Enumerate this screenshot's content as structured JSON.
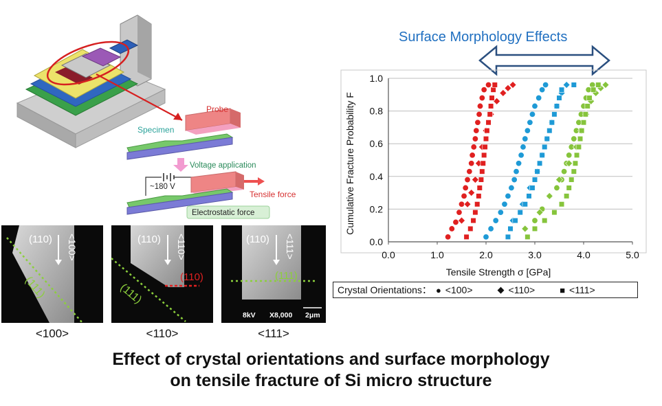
{
  "apparatus": {
    "probe_label": "Probe",
    "specimen_label": "Specimen",
    "voltage_label": "Voltage application",
    "voltage_value": "~180 V",
    "tensile_label": "Tensile force",
    "electrostatic_label": "Electrostatic force"
  },
  "sem_images": [
    {
      "caption": "<100>",
      "plane_top": "(110)",
      "direction": "<100>",
      "plane_fracture": "(111)"
    },
    {
      "caption": "<110>",
      "plane_top": "(110)",
      "direction": "<110>",
      "plane_fracture": "(111)",
      "plane_red": "(110)"
    },
    {
      "caption": "<111>",
      "plane_top": "(110)",
      "direction": "<111>",
      "plane_fracture": "(111)",
      "info": [
        "8kV",
        "X8,000",
        "2μm"
      ]
    }
  ],
  "surface_morphology_label": "Surface Morphology Effects",
  "legend": {
    "title": "Crystal Orientations：",
    "items": [
      {
        "symbol": "●",
        "label": "<100>"
      },
      {
        "symbol": "◆",
        "label": "<110>"
      },
      {
        "symbol": "■",
        "label": "<111>"
      }
    ]
  },
  "title": {
    "line1": "Effect of crystal orientations and surface morphology",
    "line2": "on tensile fracture of Si micro structure"
  },
  "colors": {
    "red": "#e02020",
    "blue": "#1e9ad6",
    "green": "#86c43c",
    "title_blue": "#1f6fc0"
  },
  "chart_data": {
    "type": "scatter",
    "xlabel": "Tensile Strength σ [GPa]",
    "ylabel": "Cumulative Fracture Probability F",
    "xlim": [
      0,
      5
    ],
    "ylim": [
      0,
      1
    ],
    "x_ticks": [
      "0.0",
      "1.0",
      "2.0",
      "3.0",
      "4.0",
      "5.0"
    ],
    "y_ticks": [
      "0.0",
      "0.2",
      "0.4",
      "0.6",
      "0.8",
      "1.0"
    ],
    "grid": "horizontal",
    "series": [
      {
        "color": "red",
        "marker": "circle",
        "points": [
          [
            1.22,
            0.03
          ],
          [
            1.3,
            0.08
          ],
          [
            1.38,
            0.12
          ],
          [
            1.45,
            0.18
          ],
          [
            1.5,
            0.23
          ],
          [
            1.55,
            0.28
          ],
          [
            1.58,
            0.33
          ],
          [
            1.62,
            0.38
          ],
          [
            1.66,
            0.43
          ],
          [
            1.7,
            0.48
          ],
          [
            1.72,
            0.53
          ],
          [
            1.75,
            0.58
          ],
          [
            1.78,
            0.63
          ],
          [
            1.8,
            0.68
          ],
          [
            1.83,
            0.73
          ],
          [
            1.86,
            0.78
          ],
          [
            1.88,
            0.83
          ],
          [
            1.92,
            0.88
          ],
          [
            1.96,
            0.93
          ],
          [
            2.05,
            0.96
          ]
        ]
      },
      {
        "color": "red",
        "marker": "diamond",
        "points": [
          [
            1.5,
            0.13
          ],
          [
            1.62,
            0.23
          ],
          [
            1.7,
            0.3
          ],
          [
            1.78,
            0.38
          ],
          [
            1.85,
            0.48
          ],
          [
            1.92,
            0.58
          ],
          [
            2.0,
            0.68
          ],
          [
            2.1,
            0.78
          ],
          [
            2.22,
            0.86
          ],
          [
            2.35,
            0.91
          ],
          [
            2.45,
            0.94
          ],
          [
            2.55,
            0.96
          ]
        ]
      },
      {
        "color": "red",
        "marker": "square",
        "points": [
          [
            1.6,
            0.03
          ],
          [
            1.68,
            0.08
          ],
          [
            1.74,
            0.13
          ],
          [
            1.78,
            0.18
          ],
          [
            1.82,
            0.23
          ],
          [
            1.85,
            0.28
          ],
          [
            1.87,
            0.33
          ],
          [
            1.9,
            0.38
          ],
          [
            1.92,
            0.43
          ],
          [
            1.94,
            0.48
          ],
          [
            1.96,
            0.53
          ],
          [
            1.98,
            0.58
          ],
          [
            2.0,
            0.63
          ],
          [
            2.02,
            0.68
          ],
          [
            2.05,
            0.73
          ],
          [
            2.08,
            0.78
          ],
          [
            2.1,
            0.83
          ],
          [
            2.12,
            0.88
          ],
          [
            2.15,
            0.93
          ],
          [
            2.18,
            0.96
          ]
        ]
      },
      {
        "color": "blue",
        "marker": "circle",
        "points": [
          [
            2.0,
            0.03
          ],
          [
            2.1,
            0.08
          ],
          [
            2.2,
            0.13
          ],
          [
            2.3,
            0.18
          ],
          [
            2.38,
            0.23
          ],
          [
            2.45,
            0.28
          ],
          [
            2.52,
            0.33
          ],
          [
            2.58,
            0.38
          ],
          [
            2.62,
            0.43
          ],
          [
            2.67,
            0.48
          ],
          [
            2.72,
            0.53
          ],
          [
            2.76,
            0.58
          ],
          [
            2.8,
            0.63
          ],
          [
            2.85,
            0.68
          ],
          [
            2.9,
            0.73
          ],
          [
            2.95,
            0.78
          ],
          [
            3.0,
            0.83
          ],
          [
            3.08,
            0.88
          ],
          [
            3.15,
            0.93
          ],
          [
            3.22,
            0.96
          ]
        ]
      },
      {
        "color": "blue",
        "marker": "diamond",
        "points": [
          [
            2.55,
            0.13
          ],
          [
            2.75,
            0.23
          ],
          [
            2.9,
            0.33
          ],
          [
            3.05,
            0.43
          ],
          [
            3.15,
            0.53
          ],
          [
            3.25,
            0.63
          ],
          [
            3.35,
            0.73
          ],
          [
            3.45,
            0.83
          ],
          [
            3.55,
            0.91
          ],
          [
            3.65,
            0.96
          ]
        ]
      },
      {
        "color": "blue",
        "marker": "square",
        "points": [
          [
            2.45,
            0.03
          ],
          [
            2.5,
            0.08
          ],
          [
            2.6,
            0.13
          ],
          [
            2.7,
            0.18
          ],
          [
            2.8,
            0.23
          ],
          [
            2.88,
            0.28
          ],
          [
            2.95,
            0.33
          ],
          [
            3.0,
            0.38
          ],
          [
            3.05,
            0.43
          ],
          [
            3.1,
            0.48
          ],
          [
            3.15,
            0.53
          ],
          [
            3.2,
            0.58
          ],
          [
            3.25,
            0.63
          ],
          [
            3.3,
            0.68
          ],
          [
            3.35,
            0.73
          ],
          [
            3.4,
            0.78
          ],
          [
            3.45,
            0.83
          ],
          [
            3.5,
            0.88
          ],
          [
            3.55,
            0.93
          ],
          [
            3.8,
            0.96
          ]
        ]
      },
      {
        "color": "green",
        "marker": "circle",
        "points": [
          [
            3.0,
            0.13
          ],
          [
            3.15,
            0.2
          ],
          [
            3.3,
            0.28
          ],
          [
            3.45,
            0.33
          ],
          [
            3.55,
            0.38
          ],
          [
            3.6,
            0.43
          ],
          [
            3.65,
            0.48
          ],
          [
            3.7,
            0.53
          ],
          [
            3.75,
            0.58
          ],
          [
            3.8,
            0.63
          ],
          [
            3.85,
            0.68
          ],
          [
            3.9,
            0.73
          ],
          [
            3.95,
            0.78
          ],
          [
            4.0,
            0.83
          ],
          [
            4.05,
            0.88
          ],
          [
            4.1,
            0.93
          ],
          [
            4.18,
            0.96
          ]
        ]
      },
      {
        "color": "green",
        "marker": "diamond",
        "points": [
          [
            2.8,
            0.08
          ],
          [
            3.1,
            0.18
          ],
          [
            3.3,
            0.28
          ],
          [
            3.5,
            0.38
          ],
          [
            3.7,
            0.48
          ],
          [
            3.85,
            0.58
          ],
          [
            3.95,
            0.68
          ],
          [
            4.05,
            0.78
          ],
          [
            4.15,
            0.86
          ],
          [
            4.25,
            0.91
          ],
          [
            4.35,
            0.94
          ],
          [
            4.45,
            0.96
          ]
        ]
      },
      {
        "color": "green",
        "marker": "square",
        "points": [
          [
            2.85,
            0.03
          ],
          [
            3.0,
            0.08
          ],
          [
            3.2,
            0.13
          ],
          [
            3.4,
            0.18
          ],
          [
            3.55,
            0.23
          ],
          [
            3.65,
            0.28
          ],
          [
            3.7,
            0.33
          ],
          [
            3.75,
            0.38
          ],
          [
            3.8,
            0.43
          ],
          [
            3.83,
            0.48
          ],
          [
            3.86,
            0.53
          ],
          [
            3.9,
            0.58
          ],
          [
            3.93,
            0.63
          ],
          [
            3.96,
            0.68
          ],
          [
            4.0,
            0.73
          ],
          [
            4.04,
            0.78
          ],
          [
            4.08,
            0.83
          ],
          [
            4.12,
            0.88
          ],
          [
            4.2,
            0.93
          ],
          [
            4.3,
            0.96
          ]
        ]
      }
    ]
  }
}
